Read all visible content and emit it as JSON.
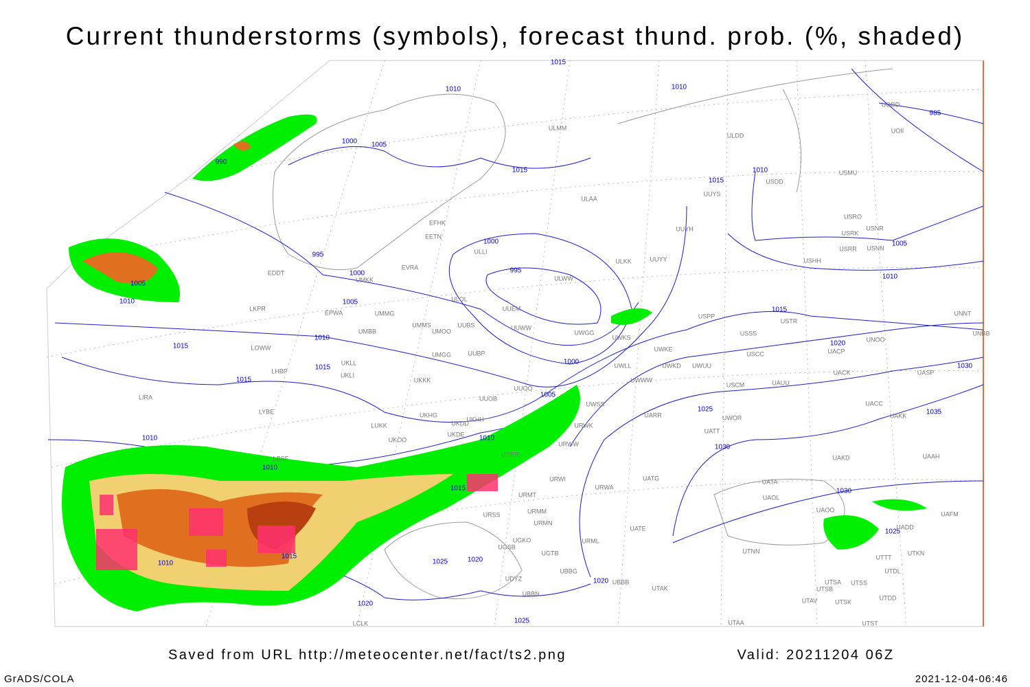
{
  "header": {
    "title": "Current thunderstorms (symbols), forecast thund. prob. (%, shaded)"
  },
  "footer": {
    "source": "Saved from URL http://meteocenter.net/fact/ts2.png",
    "valid": "Valid: 20211204 06Z",
    "software": "GrADS/COLA",
    "timestamp": "2021-12-04-06:46"
  },
  "map": {
    "isobar_labels": [
      "1015",
      "1010",
      "1010",
      "985",
      "1000",
      "1005",
      "990",
      "1015",
      "1010",
      "1015",
      "995",
      "1005",
      "1000",
      "995",
      "1000",
      "1010",
      "1005",
      "1010",
      "1005",
      "1015",
      "1010",
      "1015",
      "1020",
      "1000",
      "1015",
      "1030",
      "1015",
      "1005",
      "1025",
      "1035",
      "1010",
      "1010",
      "1030",
      "1010",
      "1015",
      "1030",
      "1025",
      "1015",
      "1010",
      "1025",
      "1020",
      "1020",
      "1020",
      "1025"
    ],
    "stations": [
      "ULMM",
      "ULDD",
      "EFHK",
      "EETN",
      "ULLI",
      "EVRA",
      "UMKK",
      "EDDT",
      "ULOL",
      "EPWA",
      "UMMG",
      "LKPR",
      "UUEM",
      "UMMS",
      "UUBS",
      "UMOO",
      "UMBB",
      "UUWW",
      "UWGG",
      "UWKS",
      "UWKE",
      "UWKD",
      "UWUU",
      "UWLL",
      "UWWW",
      "UUBP",
      "UMGG",
      "LOWW",
      "UKLL",
      "UKLI",
      "LHBP",
      "UKKK",
      "UUOO",
      "UUOB",
      "UWSS",
      "LIRA",
      "LYBE",
      "LUKK",
      "UKHG",
      "UKDD",
      "UKHH",
      "UKOO",
      "UKDE",
      "URWW",
      "URWK",
      "UARR",
      "UWOR",
      "UATT",
      "LBSF",
      "URRR",
      "URWI",
      "URMT",
      "URWA",
      "UATG",
      "UATA",
      "UAOL",
      "UAOO",
      "UAKD",
      "URSS",
      "URMM",
      "URMN",
      "UATE",
      "URML",
      "UGSB",
      "UGKO",
      "UGTB",
      "UBBG",
      "UBBB",
      "UDYZ",
      "UBBN",
      "UTAK",
      "UTNN",
      "UTSA",
      "UTSB",
      "UTSS",
      "UTAV",
      "UTSK",
      "UTDD",
      "UTST",
      "UTAA",
      "LCLK",
      "UTTT",
      "UTDL",
      "UTKN",
      "UAFM",
      "UADD",
      "UACK",
      "UASP",
      "UACC",
      "UAKK",
      "UAAH",
      "UACP",
      "UNOO",
      "UNBB",
      "UNNT",
      "USSS",
      "USTR",
      "USCC",
      "USCM",
      "UAUU",
      "USPP",
      "UUYY",
      "ULKK",
      "ULWW",
      "UUYH",
      "ULAA",
      "UUYS",
      "USDD",
      "USHH",
      "USRR",
      "USNN",
      "USRK",
      "USNR",
      "USRO",
      "USMU",
      "UOII",
      "UODD"
    ]
  }
}
